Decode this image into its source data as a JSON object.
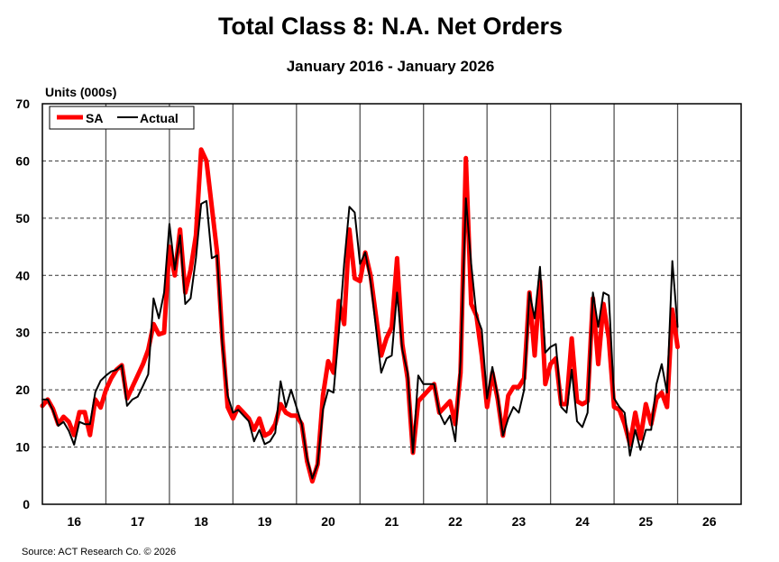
{
  "chart_data": {
    "type": "line",
    "title": "Total Class 8: N.A. Net Orders",
    "subtitle": "January 2016 - January 2026",
    "ylabel": "Units (000s)",
    "xlabel": "",
    "ylim": [
      0,
      70
    ],
    "yticks": [
      0,
      10,
      20,
      30,
      40,
      50,
      60,
      70
    ],
    "xtick_labels": [
      "16",
      "17",
      "18",
      "19",
      "20",
      "21",
      "22",
      "23",
      "24",
      "25",
      "26"
    ],
    "x_start": "2016-01",
    "x_end": "2026-12",
    "frequency": "monthly",
    "grid": "horizontal dashed, vertical solid at year boundaries",
    "legend_position": "top-left",
    "source": "Source: ACT Research Co. © 2026",
    "series": [
      {
        "name": "SA",
        "color": "#ff0000",
        "values": [
          17.2,
          18.3,
          16.7,
          14.0,
          15.3,
          14.4,
          12.1,
          16.1,
          16.1,
          12.1,
          18.3,
          16.9,
          20,
          22,
          23.5,
          24.3,
          18.5,
          20.5,
          22.5,
          24.5,
          27,
          31.5,
          29.7,
          30,
          45,
          40,
          48,
          37,
          41,
          47,
          62,
          60,
          52,
          44,
          29,
          17,
          15,
          17,
          16,
          15,
          13,
          15,
          12,
          12.5,
          14,
          17.5,
          16,
          15.5,
          15.5,
          14,
          7.5,
          4,
          7,
          19,
          25,
          23,
          35.5,
          31.5,
          48,
          39.5,
          39,
          44,
          40,
          33,
          26,
          29,
          31,
          43,
          28,
          22,
          9,
          18,
          19,
          20,
          21,
          16,
          17,
          18,
          14,
          23,
          60.5,
          35,
          33,
          26,
          17,
          23,
          18.5,
          12,
          19,
          20.5,
          20.5,
          22,
          37,
          26,
          39,
          21,
          24.5,
          25.5,
          17.5,
          17.5,
          29,
          18,
          17.5,
          18,
          36,
          24.5,
          35,
          29,
          17,
          16.5,
          14,
          10.5,
          16,
          11.5,
          17.5,
          14,
          18.5,
          19.5,
          17,
          34,
          27.5
        ]
      },
      {
        "name": "Actual",
        "color": "#000000",
        "values": [
          18.3,
          18.3,
          16.4,
          13.7,
          14.4,
          12.8,
          10.4,
          14.4,
          14.0,
          14.0,
          19.6,
          21.6,
          22.5,
          23.2,
          23.5,
          24.3,
          17.2,
          18.3,
          18.8,
          20.7,
          22.7,
          36,
          32.5,
          37,
          49,
          41,
          47,
          35,
          36,
          43,
          52.5,
          53,
          43,
          43.5,
          28,
          19,
          16,
          16.5,
          15.5,
          14.5,
          11,
          13,
          10.5,
          11,
          12.5,
          21.5,
          17,
          20,
          17,
          14,
          8,
          4.5,
          7,
          16.5,
          20,
          19.5,
          30,
          42,
          52,
          51,
          42,
          44,
          39,
          31,
          23,
          25.5,
          26,
          37,
          27,
          23,
          9,
          22.5,
          21,
          21,
          21,
          16,
          14,
          15.5,
          11,
          25,
          53.5,
          42,
          33,
          30.5,
          18.5,
          24,
          19,
          12,
          15,
          17,
          16,
          20,
          37,
          32.5,
          41.5,
          26.5,
          27.5,
          28,
          17,
          16,
          23.5,
          14.5,
          13.5,
          16,
          37,
          31,
          37,
          36.5,
          18.5,
          17,
          16,
          8.5,
          13,
          9.5,
          13,
          13,
          21,
          24.5,
          19.5,
          42.5,
          31
        ]
      }
    ]
  }
}
